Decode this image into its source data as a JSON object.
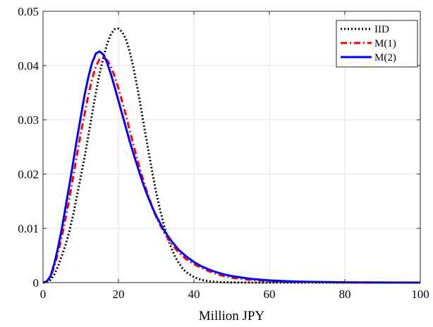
{
  "chart_data": {
    "type": "line",
    "title": "",
    "xlabel": "Million JPY",
    "ylabel": "",
    "xlim": [
      0,
      100
    ],
    "ylim": [
      0,
      0.05
    ],
    "xticks": [
      0,
      20,
      40,
      60,
      80,
      100
    ],
    "yticks": [
      0,
      0.01,
      0.02,
      0.03,
      0.04,
      0.05
    ],
    "xtick_labels": [
      "0",
      "20",
      "40",
      "60",
      "80",
      "100"
    ],
    "ytick_labels": [
      "0",
      "0.01",
      "0.02",
      "0.03",
      "0.04",
      "0.05"
    ],
    "grid": true,
    "legend_position": "top-right",
    "series": [
      {
        "name": "IID",
        "color": "#000000",
        "style": "dotted",
        "x": [
          0,
          1,
          2,
          3,
          4,
          5,
          6,
          7,
          8,
          9,
          10,
          11,
          12,
          13,
          14,
          15,
          16,
          17,
          18,
          19,
          20,
          21,
          22,
          23,
          24,
          25,
          26,
          27,
          28,
          29,
          30,
          31,
          32,
          33,
          34,
          35,
          36,
          37,
          38,
          40,
          42,
          44,
          46,
          48,
          50,
          55,
          60,
          70,
          80,
          90,
          100
        ],
        "y": [
          0,
          0.0001,
          0.0005,
          0.0015,
          0.003,
          0.005,
          0.007,
          0.0095,
          0.0125,
          0.016,
          0.0195,
          0.023,
          0.027,
          0.031,
          0.035,
          0.0385,
          0.0415,
          0.044,
          0.0458,
          0.0467,
          0.0468,
          0.0462,
          0.0448,
          0.0425,
          0.0395,
          0.036,
          0.032,
          0.028,
          0.024,
          0.0202,
          0.0166,
          0.0135,
          0.0107,
          0.0083,
          0.0064,
          0.0048,
          0.0036,
          0.0026,
          0.0019,
          0.001,
          0.0005,
          0.00025,
          0.00012,
          6e-05,
          3e-05,
          1e-05,
          0,
          0,
          0,
          0,
          0
        ]
      },
      {
        "name": "M(1)",
        "color": "#ff0000",
        "style": "dashdot",
        "x": [
          0,
          1,
          2,
          3,
          4,
          5,
          6,
          7,
          8,
          9,
          10,
          11,
          12,
          13,
          14,
          15,
          16,
          17,
          18,
          19,
          20,
          21,
          22,
          23,
          24,
          25,
          26,
          27,
          28,
          29,
          30,
          32,
          34,
          36,
          38,
          40,
          42,
          44,
          46,
          48,
          50,
          55,
          60,
          65,
          70,
          80,
          90,
          100
        ],
        "y": [
          0,
          0.0002,
          0.001,
          0.003,
          0.0055,
          0.0085,
          0.012,
          0.0155,
          0.0195,
          0.0235,
          0.0275,
          0.031,
          0.0345,
          0.0375,
          0.0398,
          0.0412,
          0.0415,
          0.041,
          0.0398,
          0.038,
          0.0358,
          0.0333,
          0.0308,
          0.028,
          0.0253,
          0.0227,
          0.0202,
          0.0179,
          0.0158,
          0.0138,
          0.0121,
          0.0093,
          0.0072,
          0.0055,
          0.0043,
          0.0034,
          0.0027,
          0.0021,
          0.0016,
          0.0012,
          0.0009,
          0.0005,
          0.0003,
          0.00017,
          0.0001,
          3e-05,
          1e-05,
          0
        ]
      },
      {
        "name": "M(2)",
        "color": "#0000ff",
        "style": "solid",
        "x": [
          0,
          1,
          2,
          3,
          4,
          5,
          6,
          7,
          8,
          9,
          10,
          11,
          12,
          13,
          14,
          15,
          16,
          17,
          18,
          19,
          20,
          21,
          22,
          23,
          24,
          25,
          26,
          27,
          28,
          29,
          30,
          32,
          34,
          36,
          38,
          40,
          42,
          44,
          46,
          48,
          50,
          55,
          60,
          65,
          70,
          80,
          90,
          100
        ],
        "y": [
          0,
          0.0002,
          0.0012,
          0.0035,
          0.0065,
          0.01,
          0.014,
          0.018,
          0.0222,
          0.0265,
          0.0305,
          0.0345,
          0.0378,
          0.0405,
          0.0422,
          0.0426,
          0.042,
          0.0405,
          0.0384,
          0.036,
          0.0335,
          0.031,
          0.0285,
          0.026,
          0.0237,
          0.0215,
          0.0193,
          0.0173,
          0.0155,
          0.0138,
          0.0123,
          0.0097,
          0.0077,
          0.006,
          0.0048,
          0.0038,
          0.003,
          0.0024,
          0.0019,
          0.0015,
          0.0012,
          0.0007,
          0.0004,
          0.00025,
          0.00015,
          5e-05,
          2e-05,
          0
        ]
      }
    ]
  }
}
